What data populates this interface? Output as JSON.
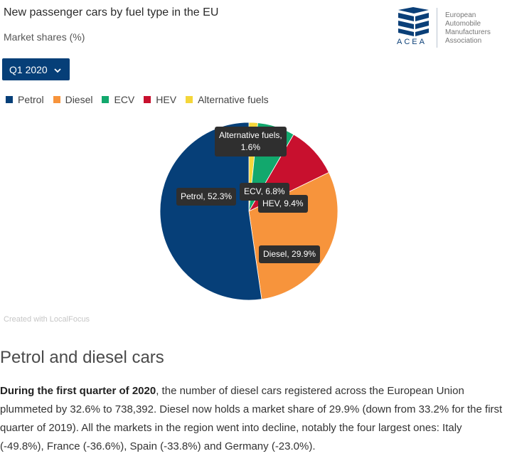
{
  "header": {
    "title": "New passenger cars by fuel type in the EU",
    "subtitle": "Market shares (%)"
  },
  "period_select": {
    "selected": "Q1 2020"
  },
  "logo": {
    "wordmark": "ACEA",
    "line1": "European",
    "line2": "Automobile",
    "line3": "Manufacturers",
    "line4": "Association",
    "color": "#0a3f78"
  },
  "credit": "Created with LocalFocus",
  "chart_data": {
    "type": "pie",
    "title": "New passenger cars by fuel type in the EU",
    "subtitle": "Market shares (%)",
    "legend_position": "top-left",
    "categories": [
      "Petrol",
      "Diesel",
      "ECV",
      "HEV",
      "Alternative fuels"
    ],
    "values": [
      52.3,
      29.9,
      6.8,
      9.4,
      1.6
    ],
    "colors": [
      "#063f78",
      "#f7943c",
      "#12a86d",
      "#c8102e",
      "#f4d63a"
    ],
    "slice_order_clockwise_from_top": [
      "Alternative fuels",
      "ECV",
      "HEV",
      "Diesel",
      "Petrol"
    ],
    "labels": {
      "petrol": "Petrol, 52.3%",
      "diesel": "Diesel, 29.9%",
      "ecv": "ECV, 6.8%",
      "hev": "HEV, 9.4%",
      "alt_line1": "Alternative fuels,",
      "alt_line2": "1.6%"
    }
  },
  "article": {
    "heading": "Petrol and diesel cars",
    "lead": "During the first quarter of 2020",
    "body": ", the number of diesel cars registered across the European Union plummeted by 32.6% to 738,392. Diesel now holds a market share of 29.9% (down from 33.2% for the first quarter of 2019). All the markets in the region went into decline, notably the four largest ones: Italy (-49.8%), France (-36.6%), Spain (-33.8%) and Germany (-23.0%)."
  }
}
